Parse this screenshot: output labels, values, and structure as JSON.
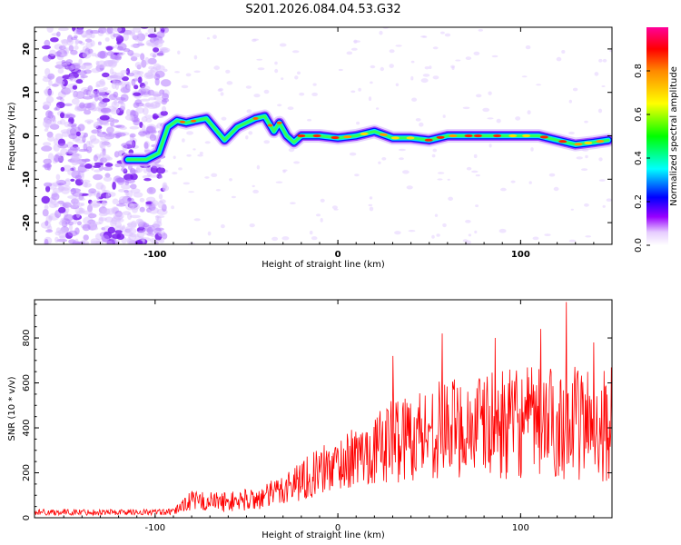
{
  "title": "S201.2026.084.04.53.G32",
  "chart_data": [
    {
      "type": "heatmap",
      "name": "spectrogram",
      "xlabel": "Height of straight line (km)",
      "ylabel": "Frequency (Hz)",
      "xlim": [
        -166,
        150
      ],
      "ylim": [
        -25,
        25
      ],
      "x_ticks": [
        -100,
        0,
        100
      ],
      "y_ticks": [
        -20,
        -10,
        0,
        10,
        20
      ],
      "colorbar": {
        "label": "Normalized spectral amplitude",
        "range": [
          0,
          1
        ],
        "ticks": [
          0.0,
          0.2,
          0.4,
          0.6,
          0.8
        ],
        "tick_labels": [
          "0.0",
          "0.2",
          "0.4",
          "0.6",
          "0.8"
        ],
        "colors": [
          "#ffffff",
          "#cc99ff",
          "#9900ff",
          "#0000ff",
          "#00ffff",
          "#00ff00",
          "#ffff00",
          "#ff9900",
          "#ff0000",
          "#ff0099"
        ]
      },
      "ridge": [
        {
          "x": -115,
          "y": -5.5
        },
        {
          "x": -105,
          "y": -5.5
        },
        {
          "x": -98,
          "y": -4
        },
        {
          "x": -93,
          "y": 2
        },
        {
          "x": -88,
          "y": 3.5
        },
        {
          "x": -83,
          "y": 3
        },
        {
          "x": -78,
          "y": 3.5
        },
        {
          "x": -72,
          "y": 4
        },
        {
          "x": -62,
          "y": -1
        },
        {
          "x": -55,
          "y": 2
        },
        {
          "x": -45,
          "y": 4
        },
        {
          "x": -40,
          "y": 4.5
        },
        {
          "x": -35,
          "y": 1
        },
        {
          "x": -32,
          "y": 3
        },
        {
          "x": -28,
          "y": 0
        },
        {
          "x": -24,
          "y": -1.5
        },
        {
          "x": -20,
          "y": 0
        },
        {
          "x": -10,
          "y": 0
        },
        {
          "x": 0,
          "y": -0.5
        },
        {
          "x": 10,
          "y": 0
        },
        {
          "x": 20,
          "y": 1
        },
        {
          "x": 30,
          "y": -0.5
        },
        {
          "x": 40,
          "y": -0.5
        },
        {
          "x": 50,
          "y": -1
        },
        {
          "x": 60,
          "y": 0
        },
        {
          "x": 70,
          "y": 0
        },
        {
          "x": 80,
          "y": 0
        },
        {
          "x": 90,
          "y": 0
        },
        {
          "x": 100,
          "y": 0
        },
        {
          "x": 110,
          "y": 0
        },
        {
          "x": 120,
          "y": -1
        },
        {
          "x": 130,
          "y": -2
        },
        {
          "x": 140,
          "y": -1.5
        },
        {
          "x": 148,
          "y": -1
        }
      ],
      "noise_region_x": [
        -166,
        -100
      ],
      "fringe_region_x": [
        -100,
        150
      ]
    },
    {
      "type": "line",
      "name": "snr",
      "xlabel": "Height of straight line (km)",
      "ylabel": "SNR (10 * v/v)",
      "xlim": [
        -166,
        150
      ],
      "ylim": [
        0,
        970
      ],
      "x_ticks": [
        -100,
        0,
        100
      ],
      "y_ticks": [
        0,
        200,
        400,
        600,
        800
      ],
      "color": "#ff0000",
      "trend": [
        {
          "x": -166,
          "base": 25,
          "amp": 14
        },
        {
          "x": -90,
          "base": 25,
          "amp": 14
        },
        {
          "x": -82,
          "base": 75,
          "amp": 45
        },
        {
          "x": -60,
          "base": 70,
          "amp": 45
        },
        {
          "x": -40,
          "base": 90,
          "amp": 55
        },
        {
          "x": -20,
          "base": 170,
          "amp": 95
        },
        {
          "x": 0,
          "base": 240,
          "amp": 120
        },
        {
          "x": 20,
          "base": 300,
          "amp": 150
        },
        {
          "x": 30,
          "base": 350,
          "amp": 200
        },
        {
          "x": 60,
          "base": 400,
          "amp": 220
        },
        {
          "x": 100,
          "base": 420,
          "amp": 250
        },
        {
          "x": 150,
          "base": 420,
          "amp": 260
        }
      ],
      "peaks": [
        {
          "x": 30,
          "y": 720
        },
        {
          "x": 57,
          "y": 820
        },
        {
          "x": 86,
          "y": 800
        },
        {
          "x": 111,
          "y": 840
        },
        {
          "x": 125,
          "y": 960
        },
        {
          "x": 140,
          "y": 780
        }
      ],
      "samples": 950
    }
  ]
}
